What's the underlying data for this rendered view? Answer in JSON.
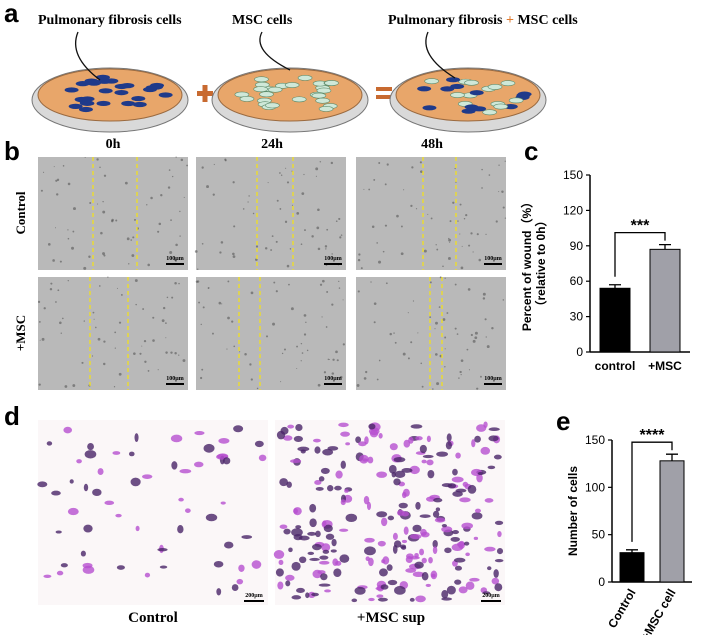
{
  "panel_labels": [
    "a",
    "b",
    "c",
    "d",
    "e"
  ],
  "panel_a": {
    "dish_labels": [
      "Pulmonary fibrosis cells",
      "MSC cells"
    ],
    "combined_label": [
      "Pulmonary fibrosis",
      "+",
      "MSC cells"
    ]
  },
  "panel_b": {
    "columns": [
      "0h",
      "24h",
      "48h"
    ],
    "rows": [
      "Control",
      "+MSC"
    ],
    "scale_bar": "100μm"
  },
  "panel_d": {
    "captions": [
      "Control",
      "+MSC sup"
    ],
    "scale_bar": "200μm"
  },
  "chart_data": [
    {
      "type": "bar",
      "ylabel": [
        "Percent of wound（%）",
        "（relative to 0h）"
      ],
      "categories": [
        "control",
        "+MSC"
      ],
      "values": [
        54,
        87
      ],
      "errors": [
        3,
        4
      ],
      "colors": [
        "#000000",
        "#a0a0a8"
      ],
      "ylim": [
        0,
        150
      ],
      "yticks": [
        0,
        30,
        60,
        90,
        120,
        150
      ],
      "annotation": "***",
      "rotate_labels": false
    },
    {
      "type": "bar",
      "ylabel": [
        "Number of cells"
      ],
      "categories": [
        "Control",
        "+MSC cell"
      ],
      "values": [
        31,
        128
      ],
      "errors": [
        3,
        7
      ],
      "colors": [
        "#000000",
        "#a0a0a8"
      ],
      "ylim": [
        0,
        150
      ],
      "yticks": [
        0,
        50,
        100,
        150
      ],
      "annotation": "****",
      "rotate_labels": true
    }
  ]
}
